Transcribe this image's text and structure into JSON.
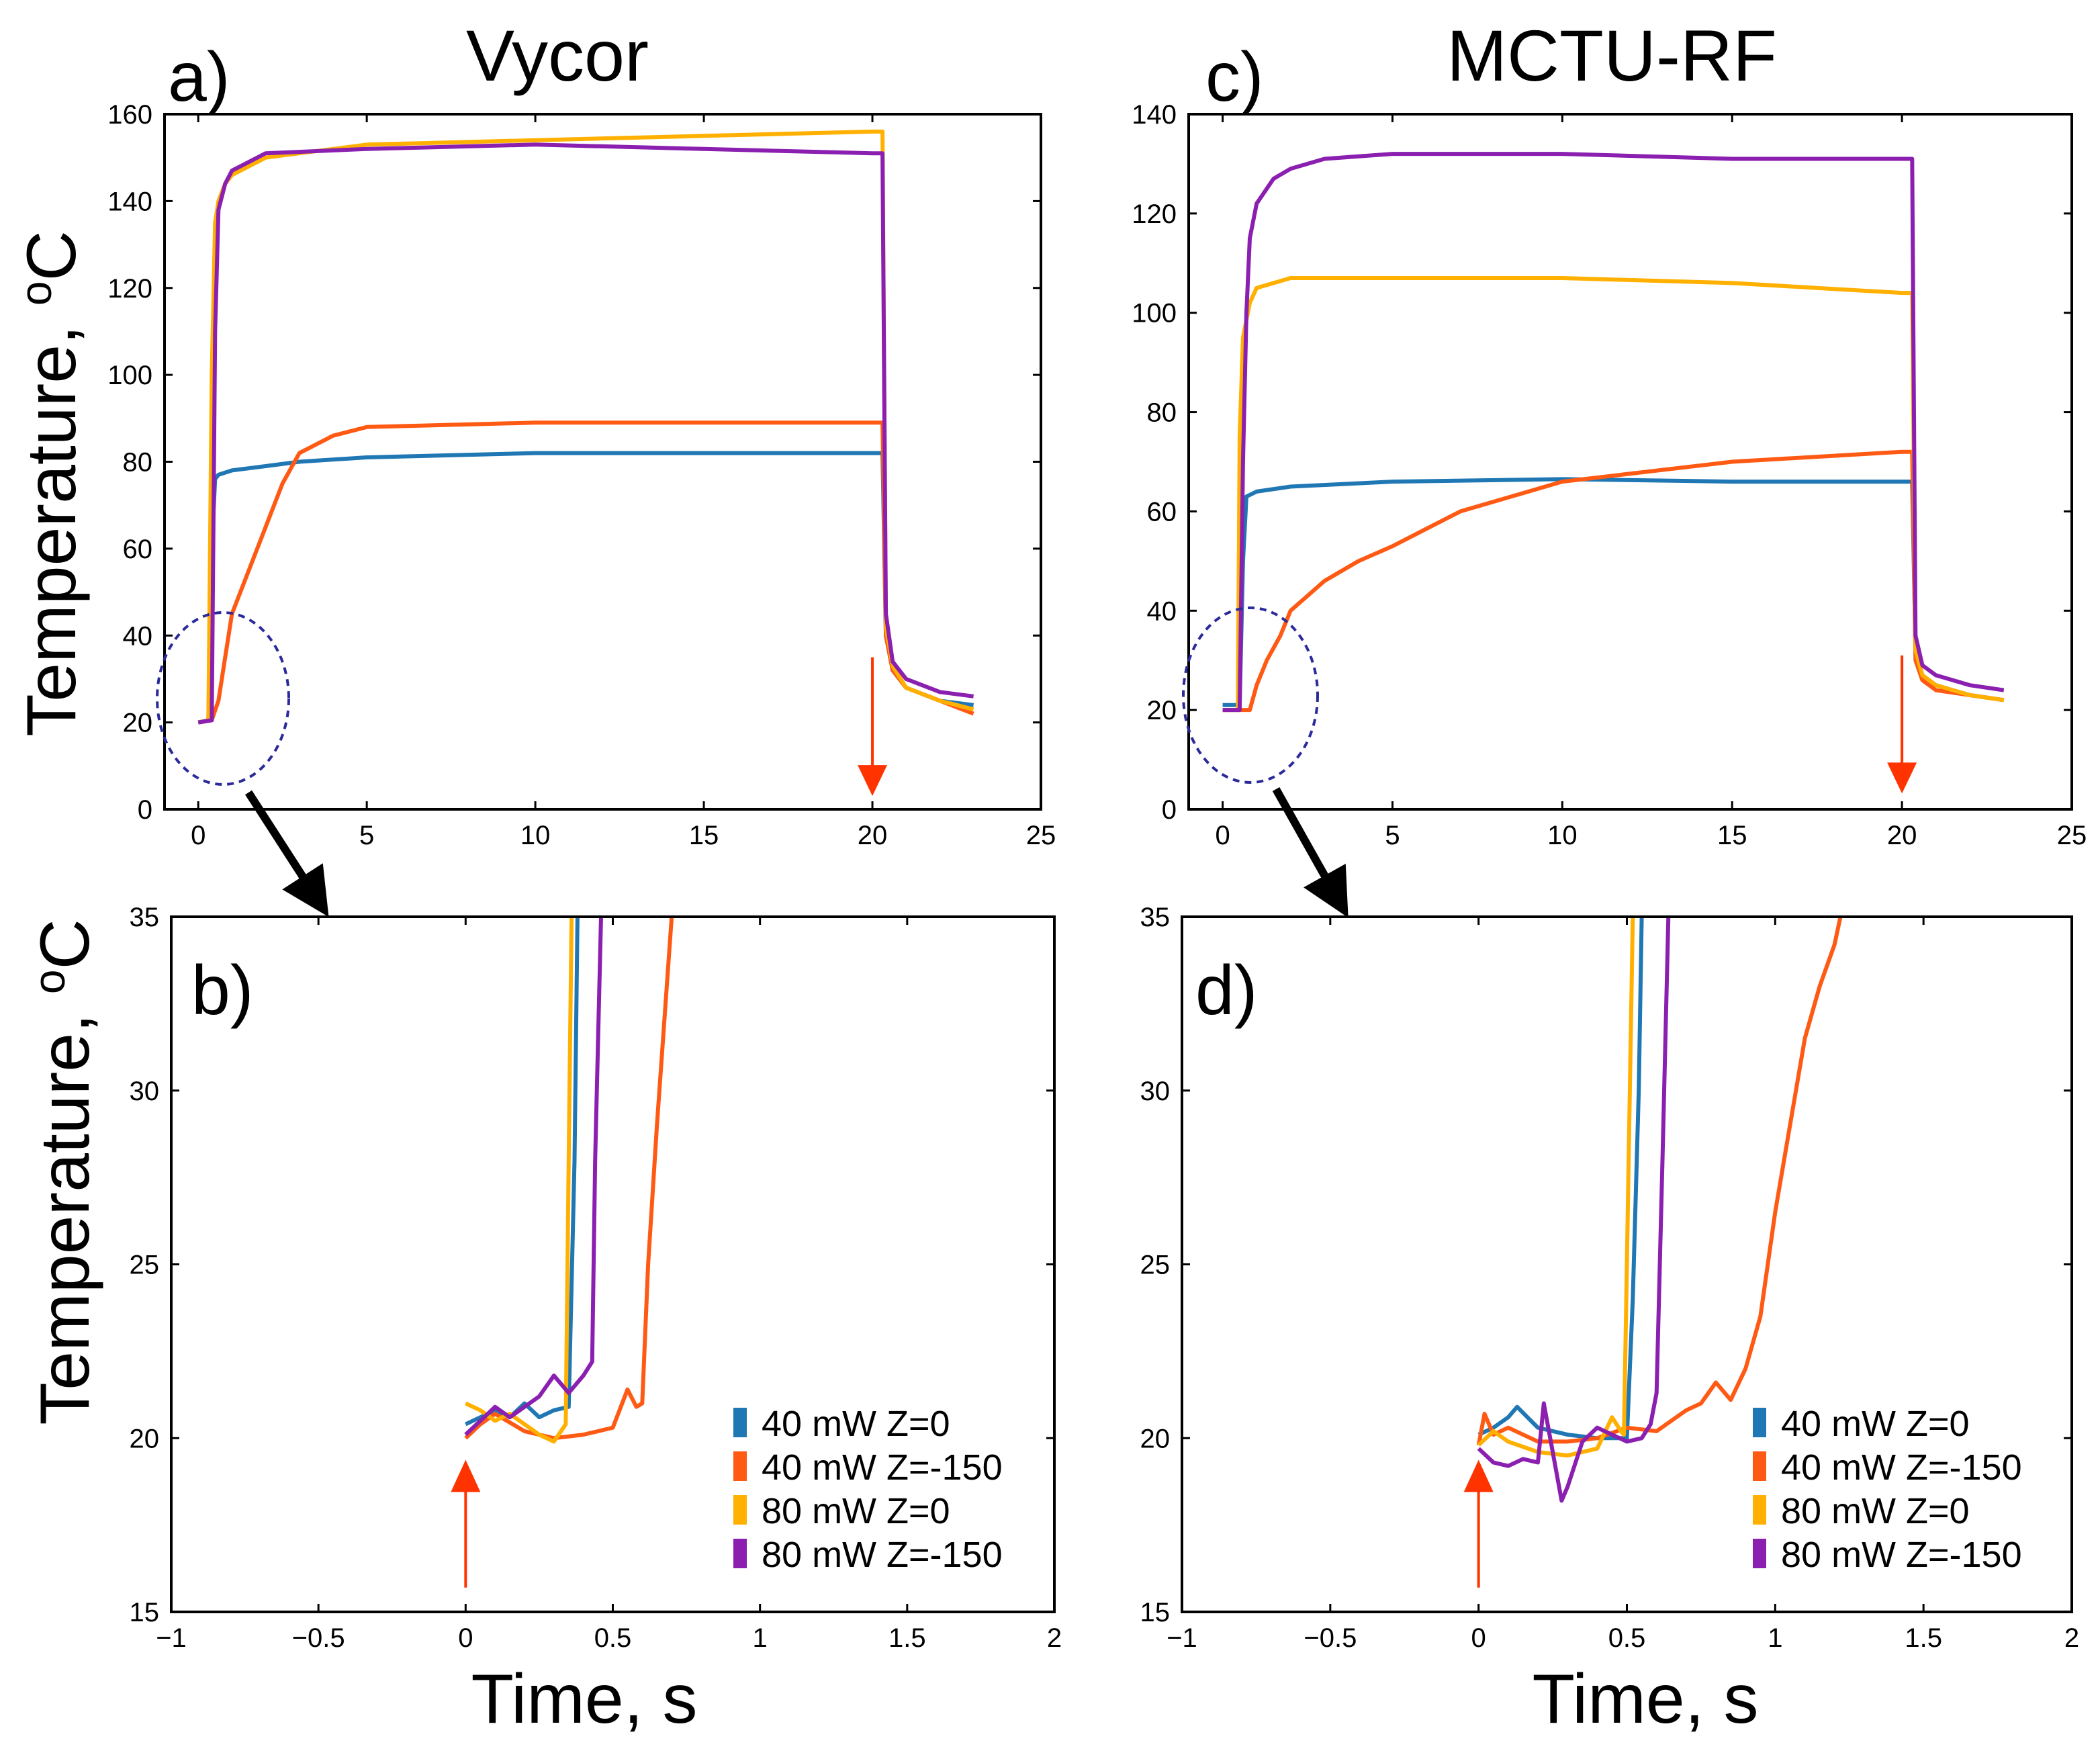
{
  "figure": {
    "colors": {
      "s1": "#1f77b4",
      "s2": "#ff5a14",
      "s3": "#ffb000",
      "s4": "#8a1fb0",
      "arrow_red": "#ff3300",
      "ellipse": "#2a2a9a"
    }
  },
  "chart_data": [
    {
      "id": "a",
      "panel_label": "a)",
      "title": "Vycor",
      "type": "line",
      "xlabel": "",
      "ylabel": "Temperature, °C",
      "ylabel_parts": [
        "Temperature, ",
        "o",
        "C"
      ],
      "xlim": [
        -1,
        25
      ],
      "ylim": [
        0,
        160
      ],
      "xticks": [
        0,
        5,
        10,
        15,
        20,
        25
      ],
      "xtick_labels": [
        "0",
        "5",
        "10",
        "15",
        "20",
        "25"
      ],
      "yticks": [
        0,
        20,
        40,
        60,
        80,
        100,
        120,
        140,
        160
      ],
      "ytick_labels": [
        "0",
        "20",
        "40",
        "60",
        "80",
        "100",
        "120",
        "140",
        "160"
      ],
      "annotations": [
        "dashed ellipse around heating onset (0–2.5 s, 5–45 °C) with arrow to panel b",
        "red down arrow at t = 20 s (laser off)"
      ],
      "series": [
        {
          "name": "40 mW Z=0",
          "color": "#1f77b4",
          "x": [
            0,
            0.3,
            0.4,
            0.5,
            0.6,
            1,
            2,
            3,
            5,
            10,
            15,
            20,
            20.3,
            20.4,
            20.6,
            21,
            22,
            23
          ],
          "y": [
            20,
            20.5,
            60,
            76,
            77,
            78,
            79,
            80,
            81,
            82,
            82,
            82,
            82,
            40,
            32,
            28,
            25,
            24
          ]
        },
        {
          "name": "40 mW Z=-150",
          "color": "#ff5a14",
          "x": [
            0,
            0.4,
            0.6,
            0.8,
            1,
            1.5,
            2,
            2.5,
            3,
            4,
            5,
            10,
            15,
            20,
            20.3,
            20.4,
            20.6,
            21,
            22,
            23
          ],
          "y": [
            20,
            20.5,
            25,
            35,
            45,
            55,
            65,
            75,
            82,
            86,
            88,
            89,
            89,
            89,
            89,
            40,
            32,
            28,
            25,
            22
          ]
        },
        {
          "name": "80 mW Z=0",
          "color": "#ffb000",
          "x": [
            0,
            0.3,
            0.4,
            0.5,
            0.6,
            0.8,
            1,
            2,
            5,
            10,
            15,
            20,
            20.3,
            20.4,
            20.6,
            21,
            22,
            23
          ],
          "y": [
            20,
            20.5,
            100,
            135,
            140,
            144,
            146,
            150,
            153,
            154,
            155,
            156,
            156,
            42,
            33,
            28,
            25,
            23
          ]
        },
        {
          "name": "80 mW Z=-150",
          "color": "#8a1fb0",
          "x": [
            0,
            0.4,
            0.5,
            0.6,
            0.8,
            1,
            2,
            5,
            10,
            15,
            20,
            20.3,
            20.4,
            20.6,
            21,
            22,
            23
          ],
          "y": [
            20,
            20.5,
            110,
            138,
            144,
            147,
            151,
            152,
            153,
            152,
            151,
            151,
            45,
            34,
            30,
            27,
            26
          ]
        }
      ]
    },
    {
      "id": "b",
      "panel_label": "b)",
      "title": "",
      "type": "line",
      "xlabel": "Time, s",
      "ylabel": "Temperature, °C",
      "ylabel_parts": [
        "Temperature, ",
        "o",
        "C"
      ],
      "xlim": [
        -1,
        2
      ],
      "ylim": [
        15,
        35
      ],
      "xticks": [
        -1,
        -0.5,
        0,
        0.5,
        1,
        1.5,
        2
      ],
      "xtick_labels": [
        "−1",
        "−0.5",
        "0",
        "0.5",
        "1",
        "1.5",
        "2"
      ],
      "yticks": [
        15,
        20,
        25,
        30,
        35
      ],
      "ytick_labels": [
        "15",
        "20",
        "25",
        "30",
        "35"
      ],
      "annotations": [
        "red up arrow at t = 0 s (laser on)"
      ],
      "legend": [
        "40 mW Z=0",
        "40 mW Z=-150",
        "80 mW Z=0",
        "80 mW Z=-150"
      ],
      "series": [
        {
          "name": "40 mW Z=0",
          "color": "#1f77b4",
          "x": [
            0,
            0.05,
            0.1,
            0.15,
            0.2,
            0.25,
            0.3,
            0.35,
            0.37,
            0.38
          ],
          "y": [
            20.4,
            20.6,
            20.8,
            20.6,
            21.0,
            20.6,
            20.8,
            20.9,
            28,
            35
          ]
        },
        {
          "name": "40 mW Z=-150",
          "color": "#ff5a14",
          "x": [
            0,
            0.05,
            0.1,
            0.2,
            0.3,
            0.4,
            0.5,
            0.55,
            0.58,
            0.6,
            0.62,
            0.65,
            0.7
          ],
          "y": [
            20.0,
            20.4,
            20.7,
            20.2,
            20.0,
            20.1,
            20.3,
            21.4,
            20.9,
            21.0,
            25,
            29,
            35
          ]
        },
        {
          "name": "80 mW Z=0",
          "color": "#ffb000",
          "x": [
            0,
            0.05,
            0.1,
            0.15,
            0.2,
            0.25,
            0.3,
            0.34,
            0.35,
            0.36
          ],
          "y": [
            21.0,
            20.8,
            20.5,
            20.7,
            20.4,
            20.1,
            19.9,
            20.4,
            28,
            35
          ]
        },
        {
          "name": "80 mW Z=-150",
          "color": "#8a1fb0",
          "x": [
            0,
            0.05,
            0.1,
            0.15,
            0.2,
            0.25,
            0.3,
            0.35,
            0.4,
            0.43,
            0.44,
            0.46
          ],
          "y": [
            20.1,
            20.5,
            20.9,
            20.6,
            20.9,
            21.2,
            21.8,
            21.3,
            21.8,
            22.2,
            28,
            35
          ]
        }
      ]
    },
    {
      "id": "c",
      "panel_label": "c)",
      "title": "MCTU-RF",
      "type": "line",
      "xlabel": "",
      "ylabel": "",
      "xlim": [
        -1,
        25
      ],
      "ylim": [
        0,
        140
      ],
      "xticks": [
        0,
        5,
        10,
        15,
        20,
        25
      ],
      "xtick_labels": [
        "0",
        "5",
        "10",
        "15",
        "20",
        "25"
      ],
      "yticks": [
        0,
        20,
        40,
        60,
        80,
        100,
        120,
        140
      ],
      "ytick_labels": [
        "0",
        "20",
        "40",
        "60",
        "80",
        "100",
        "120",
        "140"
      ],
      "annotations": [
        "dashed ellipse around heating onset with arrow to panel d",
        "red down arrow at t = 20 s (laser off)"
      ],
      "series": [
        {
          "name": "40 mW Z=0",
          "color": "#1f77b4",
          "x": [
            0,
            0.5,
            0.6,
            0.7,
            1,
            2,
            5,
            10,
            15,
            20,
            20.3,
            20.4,
            20.6,
            21,
            22,
            23
          ],
          "y": [
            21,
            21,
            50,
            63,
            64,
            65,
            66,
            66.5,
            66,
            66,
            66,
            32,
            27,
            25,
            23,
            22
          ]
        },
        {
          "name": "40 mW Z=-150",
          "color": "#ff5a14",
          "x": [
            0,
            0.8,
            1.0,
            1.3,
            1.7,
            2,
            3,
            4,
            5,
            7,
            10,
            15,
            20,
            20.3,
            20.4,
            20.6,
            21,
            22,
            23
          ],
          "y": [
            20,
            20,
            25,
            30,
            35,
            40,
            46,
            50,
            53,
            60,
            66,
            70,
            72,
            72,
            30,
            26,
            24,
            23,
            22
          ]
        },
        {
          "name": "80 mW Z=0",
          "color": "#ffb000",
          "x": [
            0,
            0.45,
            0.5,
            0.6,
            0.8,
            1,
            2,
            5,
            10,
            15,
            20,
            20.3,
            20.4,
            20.6,
            21,
            22,
            23
          ],
          "y": [
            20,
            20,
            75,
            95,
            102,
            105,
            107,
            107,
            107,
            106,
            104,
            104,
            32,
            27,
            25,
            23,
            22
          ]
        },
        {
          "name": "80 mW Z=-150",
          "color": "#8a1fb0",
          "x": [
            0,
            0.5,
            0.6,
            0.7,
            0.8,
            1,
            1.5,
            2,
            3,
            5,
            10,
            15,
            20,
            20.3,
            20.4,
            20.6,
            21,
            22,
            23
          ],
          "y": [
            20,
            20,
            70,
            100,
            115,
            122,
            127,
            129,
            131,
            132,
            132,
            131,
            131,
            131,
            35,
            29,
            27,
            25,
            24
          ]
        }
      ]
    },
    {
      "id": "d",
      "panel_label": "d)",
      "title": "",
      "type": "line",
      "xlabel": "Time, s",
      "ylabel": "",
      "xlim": [
        -1,
        2
      ],
      "ylim": [
        15,
        35
      ],
      "xticks": [
        -1,
        -0.5,
        0,
        0.5,
        1,
        1.5,
        2
      ],
      "xtick_labels": [
        "−1",
        "−0.5",
        "0",
        "0.5",
        "1",
        "1.5",
        "2"
      ],
      "yticks": [
        15,
        20,
        25,
        30,
        35
      ],
      "ytick_labels": [
        "15",
        "20",
        "25",
        "30",
        "35"
      ],
      "annotations": [
        "red up arrow at t = 0 s (laser on)"
      ],
      "legend": [
        "40 mW Z=0",
        "40 mW Z=-150",
        "80 mW Z=0",
        "80 mW Z=-150"
      ],
      "series": [
        {
          "name": "40 mW Z=0",
          "color": "#1f77b4",
          "x": [
            0,
            0.05,
            0.1,
            0.13,
            0.2,
            0.3,
            0.4,
            0.5,
            0.52,
            0.54,
            0.55
          ],
          "y": [
            20.1,
            20.3,
            20.6,
            20.9,
            20.3,
            20.1,
            20.0,
            20.0,
            24,
            30,
            35
          ]
        },
        {
          "name": "40 mW Z=-150",
          "color": "#ff5a14",
          "x": [
            0,
            0.02,
            0.05,
            0.1,
            0.2,
            0.3,
            0.4,
            0.5,
            0.6,
            0.7,
            0.75,
            0.8,
            0.85,
            0.9,
            0.95,
            1.0,
            1.05,
            1.1,
            1.15,
            1.2,
            1.22
          ],
          "y": [
            19.8,
            20.7,
            20.1,
            20.3,
            19.9,
            19.9,
            20.0,
            20.3,
            20.2,
            20.8,
            21.0,
            21.6,
            21.1,
            22.0,
            23.5,
            26.5,
            29.0,
            31.5,
            33.0,
            34.2,
            35
          ]
        },
        {
          "name": "80 mW Z=0",
          "color": "#ffb000",
          "x": [
            0,
            0.05,
            0.1,
            0.2,
            0.3,
            0.4,
            0.45,
            0.48,
            0.49,
            0.5,
            0.51,
            0.52
          ],
          "y": [
            19.8,
            20.2,
            19.9,
            19.6,
            19.5,
            19.7,
            20.6,
            20.2,
            20.1,
            25,
            30,
            35
          ]
        },
        {
          "name": "80 mW Z=-150",
          "color": "#8a1fb0",
          "x": [
            0,
            0.05,
            0.1,
            0.15,
            0.2,
            0.22,
            0.25,
            0.28,
            0.3,
            0.35,
            0.4,
            0.5,
            0.55,
            0.58,
            0.6,
            0.62,
            0.64
          ],
          "y": [
            19.7,
            19.3,
            19.2,
            19.4,
            19.3,
            21.0,
            19.6,
            18.2,
            18.6,
            19.9,
            20.3,
            19.9,
            20.0,
            20.4,
            21.3,
            28,
            35
          ]
        }
      ]
    }
  ]
}
